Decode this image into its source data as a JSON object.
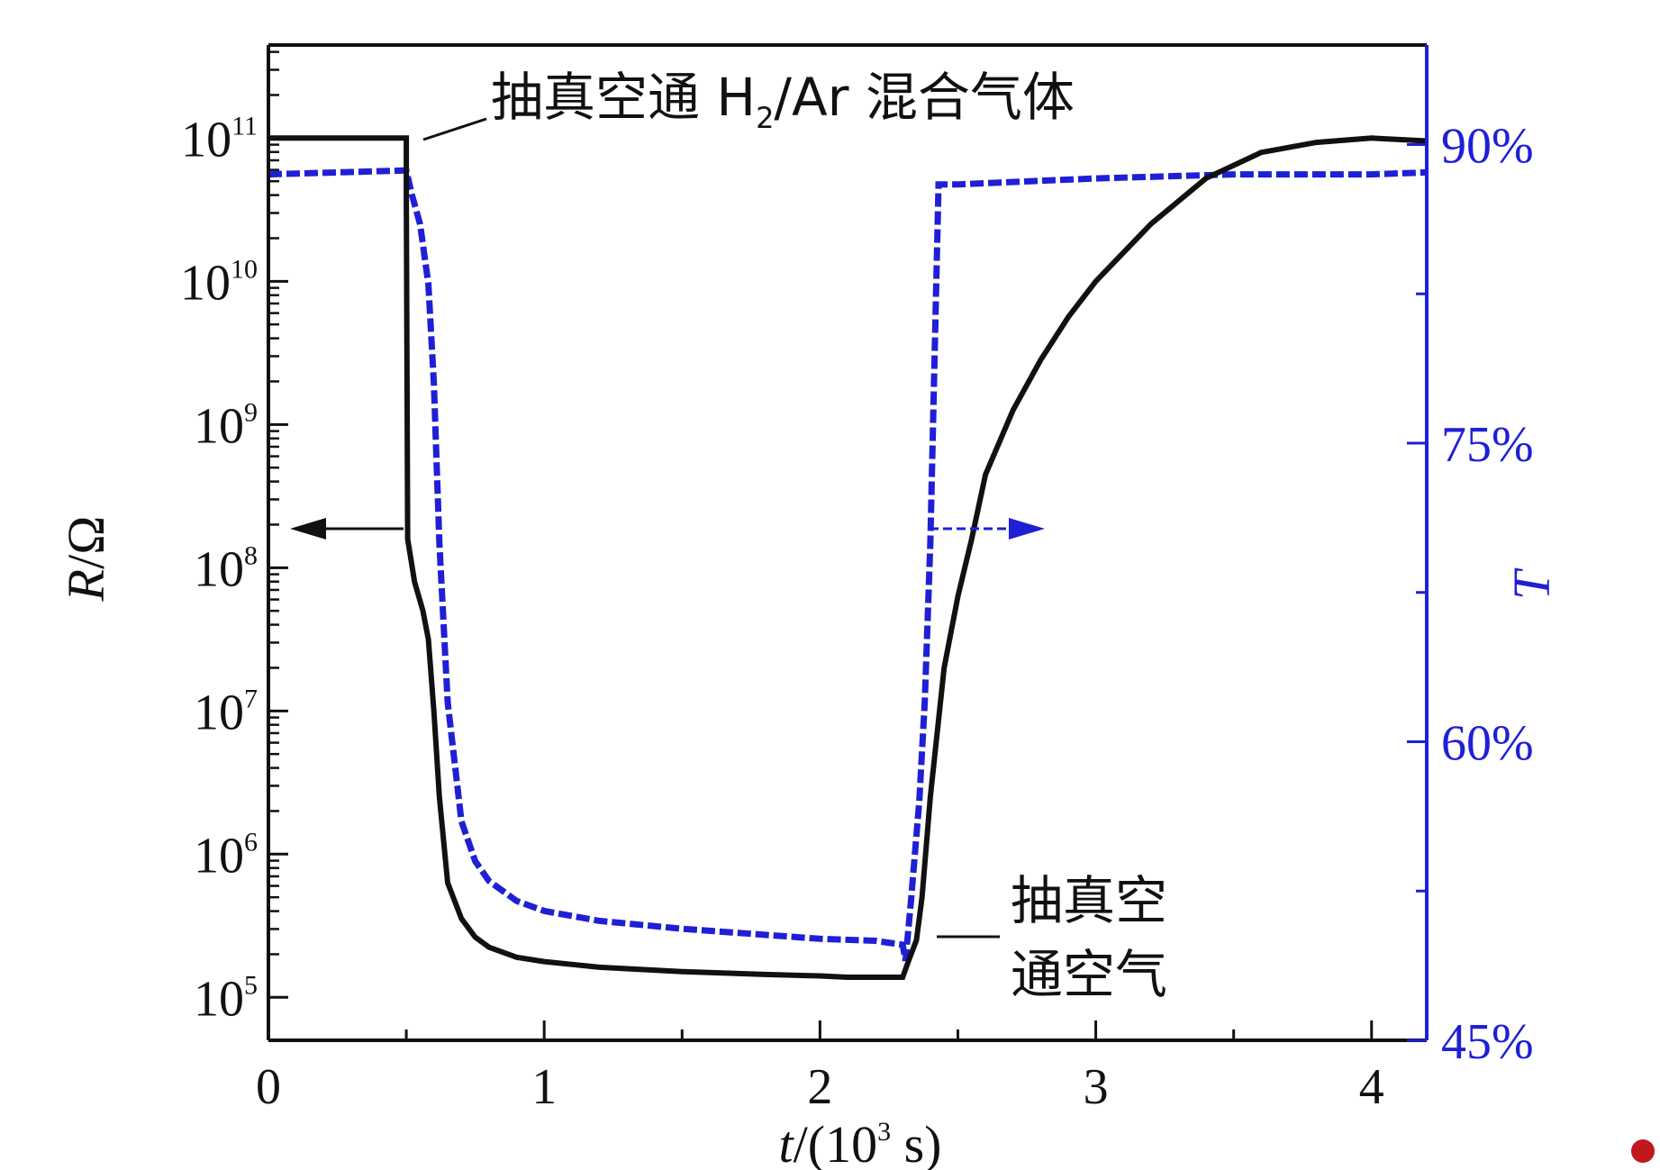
{
  "chart_data": {
    "type": "line",
    "xlabel": {
      "var": "t",
      "rest": "/(10",
      "sup": "3",
      "unit": " s)"
    },
    "ylabel_left": {
      "var": "R",
      "rest": "/Ω"
    },
    "ylabel_right": "T",
    "x_ticks": [
      0,
      1,
      2,
      3,
      4
    ],
    "xlim": [
      0,
      4.2
    ],
    "y_left_scale": "log",
    "y_left_ticks": [
      {
        "base": "10",
        "exp": "5"
      },
      {
        "base": "10",
        "exp": "6"
      },
      {
        "base": "10",
        "exp": "7"
      },
      {
        "base": "10",
        "exp": "8"
      },
      {
        "base": "10",
        "exp": "9"
      },
      {
        "base": "10",
        "exp": "10"
      },
      {
        "base": "10",
        "exp": "11"
      }
    ],
    "y_left_exp_range": [
      4.7,
      11.65
    ],
    "y_right_ticks": [
      "45%",
      "60%",
      "75%",
      "90%"
    ],
    "y_right_range": [
      45,
      95
    ],
    "annotations": {
      "top": {
        "pre": "抽真空通 H",
        "sub": "2",
        "post": "/Ar 混合气体"
      },
      "bottom_line1": "抽真空",
      "bottom_line2": "通空气"
    },
    "series": [
      {
        "axis": "left",
        "color": "#111111",
        "style": "solid",
        "x": [
          0,
          0.5,
          0.5,
          0.505,
          0.53,
          0.56,
          0.58,
          0.6,
          0.62,
          0.65,
          0.7,
          0.75,
          0.8,
          0.9,
          1.0,
          1.2,
          1.5,
          1.8,
          2.0,
          2.1,
          2.3,
          2.32,
          2.35,
          2.37,
          2.4,
          2.45,
          2.5,
          2.55,
          2.6,
          2.7,
          2.8,
          2.9,
          3.0,
          3.2,
          3.4,
          3.6,
          3.8,
          4.0,
          4.2
        ],
        "y_exp": [
          11.0,
          11.0,
          10.6,
          8.2,
          7.9,
          7.7,
          7.5,
          7.0,
          6.4,
          5.8,
          5.55,
          5.42,
          5.35,
          5.28,
          5.25,
          5.21,
          5.18,
          5.16,
          5.15,
          5.14,
          5.14,
          5.25,
          5.4,
          5.7,
          6.4,
          7.3,
          7.8,
          8.2,
          8.65,
          9.1,
          9.45,
          9.75,
          10.0,
          10.4,
          10.72,
          10.9,
          10.97,
          11.0,
          10.98
        ]
      },
      {
        "axis": "right",
        "color": "#1f1fd6",
        "style": "dashed",
        "x": [
          0,
          0.5,
          0.52,
          0.55,
          0.58,
          0.6,
          0.62,
          0.65,
          0.7,
          0.75,
          0.8,
          0.9,
          1.0,
          1.2,
          1.5,
          1.8,
          2.0,
          2.2,
          2.3,
          2.31,
          2.33,
          2.36,
          2.38,
          2.4,
          2.43,
          2.5,
          3.0,
          3.5,
          4.0,
          4.2
        ],
        "y": [
          88.5,
          88.7,
          87.5,
          86.0,
          83.0,
          78.0,
          70.0,
          62.0,
          56.0,
          54.0,
          53.0,
          52.0,
          51.5,
          51.0,
          50.6,
          50.3,
          50.1,
          50.0,
          49.8,
          49.0,
          52.0,
          57.0,
          62.0,
          70.0,
          88.0,
          88.0,
          88.3,
          88.5,
          88.5,
          88.6
        ]
      }
    ]
  }
}
